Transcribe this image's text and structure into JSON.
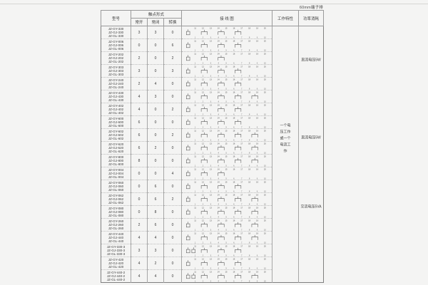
{
  "page": {
    "corner_label": "60mm端子排"
  },
  "table": {
    "headers": {
      "model": "型号",
      "contact_form": "触点形式",
      "contact_sub": [
        "常开",
        "常闭",
        "转换"
      ],
      "wiring": "接 线 图",
      "work": "工作特性",
      "power": "功率消耗"
    },
    "rows": [
      {
        "models": [
          "JZ-GY-330",
          "JZ-GJ-330",
          "JZ-GL-330"
        ],
        "no": "3",
        "nc": "3",
        "co": "0",
        "coils": 1
      },
      {
        "models": [
          "JZ-GY-006",
          "JZ-GJ-006",
          "JZ-GL-006"
        ],
        "no": "0",
        "nc": "0",
        "co": "6",
        "coils": 1
      },
      {
        "models": [
          "JZ-GY-202",
          "JZ-GJ-202",
          "JZ-GL-202"
        ],
        "no": "2",
        "nc": "0",
        "co": "2",
        "coils": 1
      },
      {
        "models": [
          "JZ-GY-303",
          "JZ-GJ-303",
          "JZ-GL-303"
        ],
        "no": "3",
        "nc": "0",
        "co": "3",
        "coils": 1
      },
      {
        "models": [
          "JZ-GY-240",
          "JZ-GJ-240",
          "JZ-GL-240"
        ],
        "no": "2",
        "nc": "4",
        "co": "0",
        "coils": 1
      },
      {
        "models": [
          "JZ-GY-430",
          "JZ-GJ-430",
          "JZ-GL-430"
        ],
        "no": "4",
        "nc": "3",
        "co": "0",
        "coils": 1
      },
      {
        "models": [
          "JZ-GY-402",
          "JZ-GJ-402",
          "JZ-GL-402"
        ],
        "no": "4",
        "nc": "0",
        "co": "2",
        "coils": 1
      },
      {
        "models": [
          "JZ-GY-600",
          "JZ-GJ-600",
          "JZ-GL-600"
        ],
        "no": "6",
        "nc": "0",
        "co": "0",
        "coils": 1
      },
      {
        "models": [
          "JZ-GY-602",
          "JZ-GJ-602",
          "JZ-GL-602"
        ],
        "no": "6",
        "nc": "0",
        "co": "2",
        "coils": 1
      },
      {
        "models": [
          "JZ-GY-620",
          "JZ-GJ-620",
          "JZ-GL-620"
        ],
        "no": "6",
        "nc": "2",
        "co": "0",
        "coils": 1
      },
      {
        "models": [
          "JZ-GY-800",
          "JZ-GJ-800",
          "JZ-GL-800"
        ],
        "no": "8",
        "nc": "0",
        "co": "0",
        "coils": 1
      },
      {
        "models": [
          "JZ-GY-004",
          "JZ-GJ-004",
          "JZ-GL-004"
        ],
        "no": "0",
        "nc": "0",
        "co": "4",
        "coils": 1
      },
      {
        "models": [
          "JZ-GY-060",
          "JZ-GJ-060",
          "JZ-GL-060"
        ],
        "no": "0",
        "nc": "6",
        "co": "0",
        "coils": 1
      },
      {
        "models": [
          "JZ-GY-062",
          "JZ-GJ-062",
          "JZ-GL-062"
        ],
        "no": "0",
        "nc": "6",
        "co": "2",
        "coils": 1
      },
      {
        "models": [
          "JZ-GY-080",
          "JZ-GJ-080",
          "JZ-GL-080"
        ],
        "no": "0",
        "nc": "8",
        "co": "0",
        "coils": 1
      },
      {
        "models": [
          "JZ-GY-260",
          "JZ-GJ-260",
          "JZ-GL-260"
        ],
        "no": "2",
        "nc": "6",
        "co": "0",
        "coils": 1
      },
      {
        "models": [
          "JZ-GY-440",
          "JZ-GJ-440",
          "JZ-GL-440"
        ],
        "no": "4",
        "nc": "4",
        "co": "0",
        "coils": 1
      },
      {
        "models": [
          "JZ-GY-330-3",
          "JZ-GJ-330-3",
          "JZ-GL-330-3"
        ],
        "no": "3",
        "nc": "3",
        "co": "0",
        "coils": 2
      },
      {
        "models": [
          "JZ-GY-420",
          "JZ-GJ-420",
          "JZ-GL-420"
        ],
        "no": "4",
        "nc": "2",
        "co": "0",
        "coils": 1
      },
      {
        "models": [
          "JZ-GY-440-2",
          "JZ-GJ-440-2",
          "JZ-GL-440-2"
        ],
        "no": "4",
        "nc": "4",
        "co": "0",
        "coils": 2
      }
    ],
    "work_text": "一个电压工作或一个电流工作",
    "power_labels": [
      "直流电压5W",
      "直流电压5W",
      "交流电压5VA"
    ],
    "diagram": {
      "top_terminals": [
        "11",
        "12",
        "13",
        "14",
        "15",
        "16",
        "17",
        "18",
        "19",
        "20"
      ],
      "bottom_terminals": [
        "1",
        "2",
        "3",
        "4",
        "5",
        "6",
        "7",
        "8",
        "9",
        "10"
      ]
    }
  },
  "colors": {
    "page_background": "#f4f4f3",
    "outer_border": "#7f7f7f",
    "inner_border": "#a6a6a6",
    "dotted_separator": "#bcbcbc",
    "text": "#3c3c3c",
    "diagram_stroke": "#555555"
  }
}
